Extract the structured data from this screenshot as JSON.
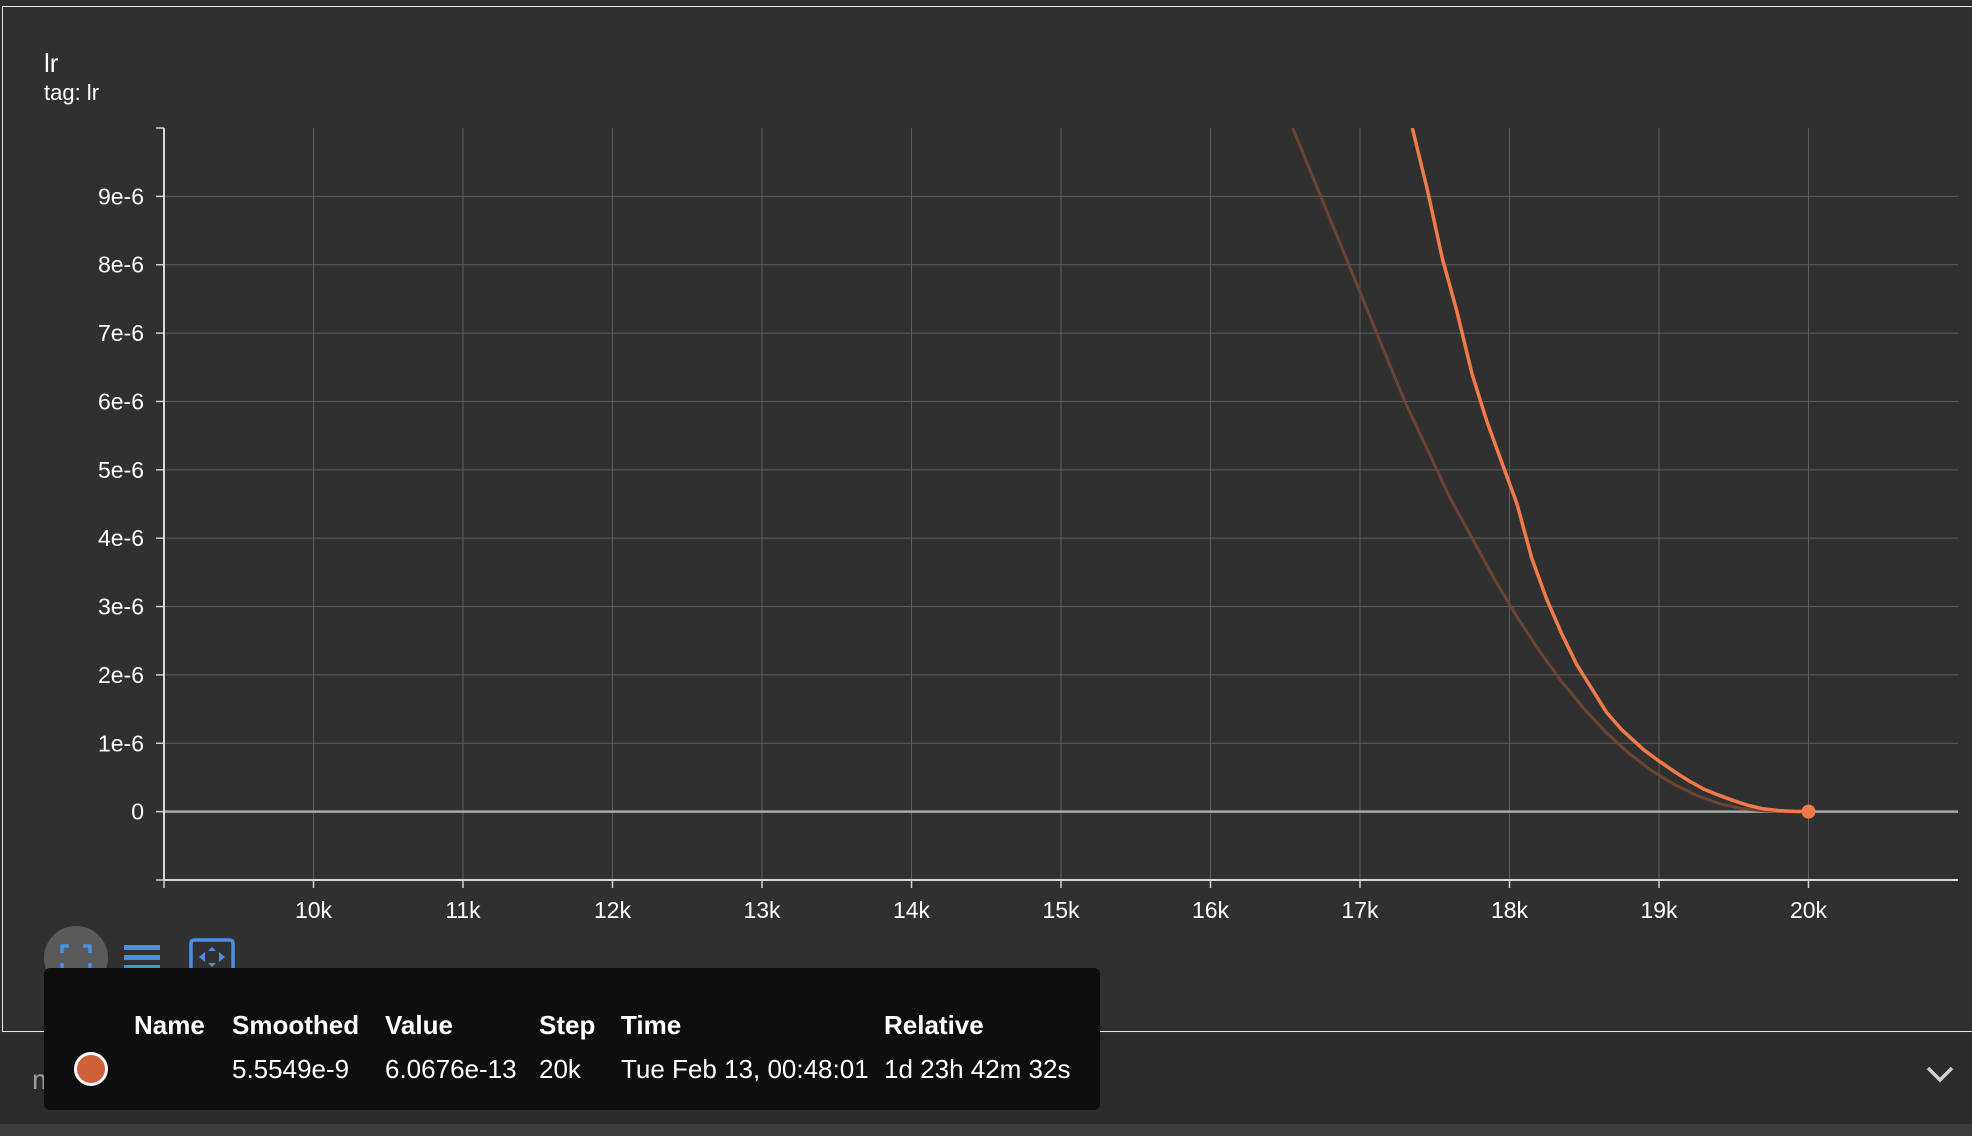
{
  "card": {
    "title": "lr",
    "subtitle": "tag: lr"
  },
  "toolbar": {
    "fullscreen_icon": "fullscreen-icon",
    "legend_icon": "lines-icon",
    "fit_icon": "fit-domain-icon"
  },
  "bottom_bar": {
    "label": "m_train_loss",
    "expand_icon": "chevron-down-icon"
  },
  "tooltip": {
    "headers": {
      "name": "Name",
      "smoothed": "Smoothed",
      "value": "Value",
      "step": "Step",
      "time": "Time",
      "relative": "Relative"
    },
    "row": {
      "color": "#d0603a",
      "smoothed": "5.5549e-9",
      "value": "6.0676e-13",
      "step": "20k",
      "time": "Tue Feb 13, 00:48:01",
      "relative": "1d 23h 42m 32s"
    }
  },
  "colors": {
    "raw_line": "#f07a4a",
    "smoothed_line": "#6a4332",
    "background": "#303030",
    "grid": "#5c5c5c"
  },
  "chart_data": {
    "type": "line",
    "title": "lr",
    "subtitle": "tag: lr",
    "xlim": [
      9000,
      21000
    ],
    "ylim": [
      -1e-06,
      1e-05
    ],
    "x_ticks": [
      10000,
      11000,
      12000,
      13000,
      14000,
      15000,
      16000,
      17000,
      18000,
      19000,
      20000
    ],
    "x_tick_labels": [
      "10k",
      "11k",
      "12k",
      "13k",
      "14k",
      "15k",
      "16k",
      "17k",
      "18k",
      "19k",
      "20k"
    ],
    "y_ticks": [
      0,
      1e-06,
      2e-06,
      3e-06,
      4e-06,
      5e-06,
      6e-06,
      7e-06,
      8e-06,
      9e-06
    ],
    "y_tick_labels": [
      "0",
      "1e-6",
      "2e-6",
      "3e-6",
      "4e-6",
      "5e-6",
      "6e-6",
      "7e-6",
      "8e-6",
      "9e-6"
    ],
    "grid": true,
    "series": [
      {
        "color": "#f07a4a",
        "x": [
          17350,
          17450,
          17550,
          17650,
          17750,
          17850,
          17950,
          18050,
          18150,
          18250,
          18350,
          18450,
          18550,
          18650,
          18750,
          18900,
          19000,
          19100,
          19200,
          19300,
          19400,
          19500,
          19600,
          19700,
          19800,
          19900,
          20000
        ],
        "y": [
          1e-05,
          9.1e-06,
          8.1e-06,
          7.3e-06,
          6.4e-06,
          5.7e-06,
          5.1e-06,
          4.5e-06,
          3.7e-06,
          3.1e-06,
          2.6e-06,
          2.15e-06,
          1.8e-06,
          1.45e-06,
          1.2e-06,
          9e-07,
          7.4e-07,
          5.9e-07,
          4.5e-07,
          3.3e-07,
          2.4e-07,
          1.6e-07,
          9e-08,
          4e-08,
          1.5e-08,
          3e-09,
          6.0676e-13
        ]
      },
      {
        "color": "#6a4332",
        "x": [
          16550,
          16700,
          16850,
          17000,
          17150,
          17300,
          17450,
          17600,
          17750,
          17900,
          18050,
          18200,
          18350,
          18500,
          18650,
          18800,
          18950,
          19100,
          19250,
          19400,
          19550,
          19700,
          19850,
          20000
        ],
        "y": [
          1e-05,
          9.2e-06,
          8.4e-06,
          7.6e-06,
          6.8e-06,
          6e-06,
          5.3e-06,
          4.6e-06,
          4e-06,
          3.4e-06,
          2.85e-06,
          2.35e-06,
          1.9e-06,
          1.5e-06,
          1.15e-06,
          8.5e-07,
          6e-07,
          4e-07,
          2.4e-07,
          1.2e-07,
          4.5e-08,
          1.2e-08,
          1e-09,
          5.5549e-09
        ]
      }
    ],
    "highlight_point": {
      "x": 20000,
      "y": 6.0676e-13
    }
  }
}
